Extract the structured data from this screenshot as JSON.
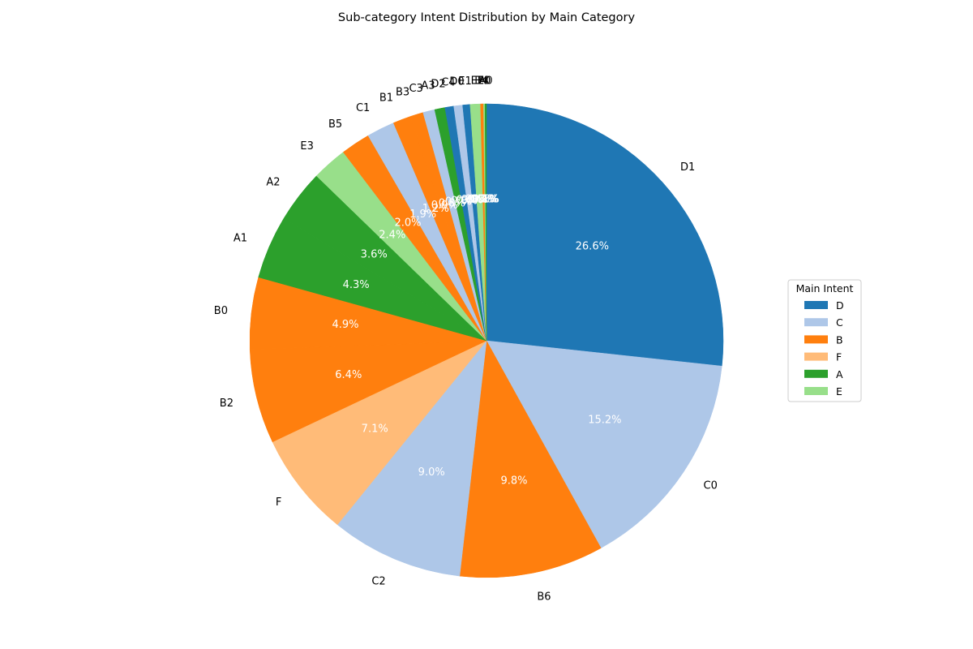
{
  "chart_data": {
    "type": "pie",
    "title": "Sub-category Intent Distribution by Main Category",
    "start": "top",
    "direction": "clockwise",
    "unit": "percent",
    "slices": [
      {
        "label": "D1",
        "value": 26.6,
        "pct_label": "26.6%",
        "group": "D"
      },
      {
        "label": "C0",
        "value": 15.2,
        "pct_label": "15.2%",
        "group": "C"
      },
      {
        "label": "B6",
        "value": 9.8,
        "pct_label": "9.8%",
        "group": "B"
      },
      {
        "label": "C2",
        "value": 9.0,
        "pct_label": "9.0%",
        "group": "C"
      },
      {
        "label": "F",
        "value": 7.1,
        "pct_label": "7.1%",
        "group": "F"
      },
      {
        "label": "B2",
        "value": 6.4,
        "pct_label": "6.4%",
        "group": "B"
      },
      {
        "label": "B0",
        "value": 4.9,
        "pct_label": "4.9%",
        "group": "B"
      },
      {
        "label": "A1",
        "value": 4.3,
        "pct_label": "4.3%",
        "group": "A"
      },
      {
        "label": "A2",
        "value": 3.6,
        "pct_label": "3.6%",
        "group": "A"
      },
      {
        "label": "E3",
        "value": 2.4,
        "pct_label": "2.4%",
        "group": "E"
      },
      {
        "label": "B5",
        "value": 2.0,
        "pct_label": "2.0%",
        "group": "B"
      },
      {
        "label": "C1",
        "value": 1.9,
        "pct_label": "1.9%",
        "group": "C"
      },
      {
        "label": "B1",
        "value": 1.2,
        "pct_label": "1.2%",
        "group": "B"
      },
      {
        "label": "B3",
        "value": 0.9,
        "pct_label": "0.9%",
        "group": "B"
      },
      {
        "label": "C3",
        "value": 0.8,
        "pct_label": "0.8%",
        "group": "C"
      },
      {
        "label": "A3",
        "value": 0.7,
        "pct_label": "0.7%",
        "group": "A"
      },
      {
        "label": "D2",
        "value": 0.6,
        "pct_label": "0.6%",
        "group": "D"
      },
      {
        "label": "C4",
        "value": 0.6,
        "pct_label": "0.6%",
        "group": "C"
      },
      {
        "label": "D0",
        "value": 0.5,
        "pct_label": "0.5%",
        "group": "D"
      },
      {
        "label": "E1",
        "value": 0.4,
        "pct_label": "0.4%",
        "group": "E"
      },
      {
        "label": "E2",
        "value": 0.3,
        "pct_label": "0.3%",
        "group": "E"
      },
      {
        "label": "B4",
        "value": 0.2,
        "pct_label": "0.2%",
        "group": "B"
      },
      {
        "label": "E0",
        "value": 0.1,
        "pct_label": "0.1%",
        "group": "E"
      },
      {
        "label": "A0",
        "value": 0.1,
        "pct_label": "0.1%",
        "group": "A"
      }
    ],
    "legend": {
      "title": "Main Intent",
      "placement": "right",
      "entries": [
        {
          "label": "D",
          "color": "#1f77b4"
        },
        {
          "label": "C",
          "color": "#aec7e8"
        },
        {
          "label": "B",
          "color": "#ff7f0e"
        },
        {
          "label": "F",
          "color": "#ffbb78"
        },
        {
          "label": "A",
          "color": "#2ca02c"
        },
        {
          "label": "E",
          "color": "#98df8a"
        }
      ]
    }
  }
}
